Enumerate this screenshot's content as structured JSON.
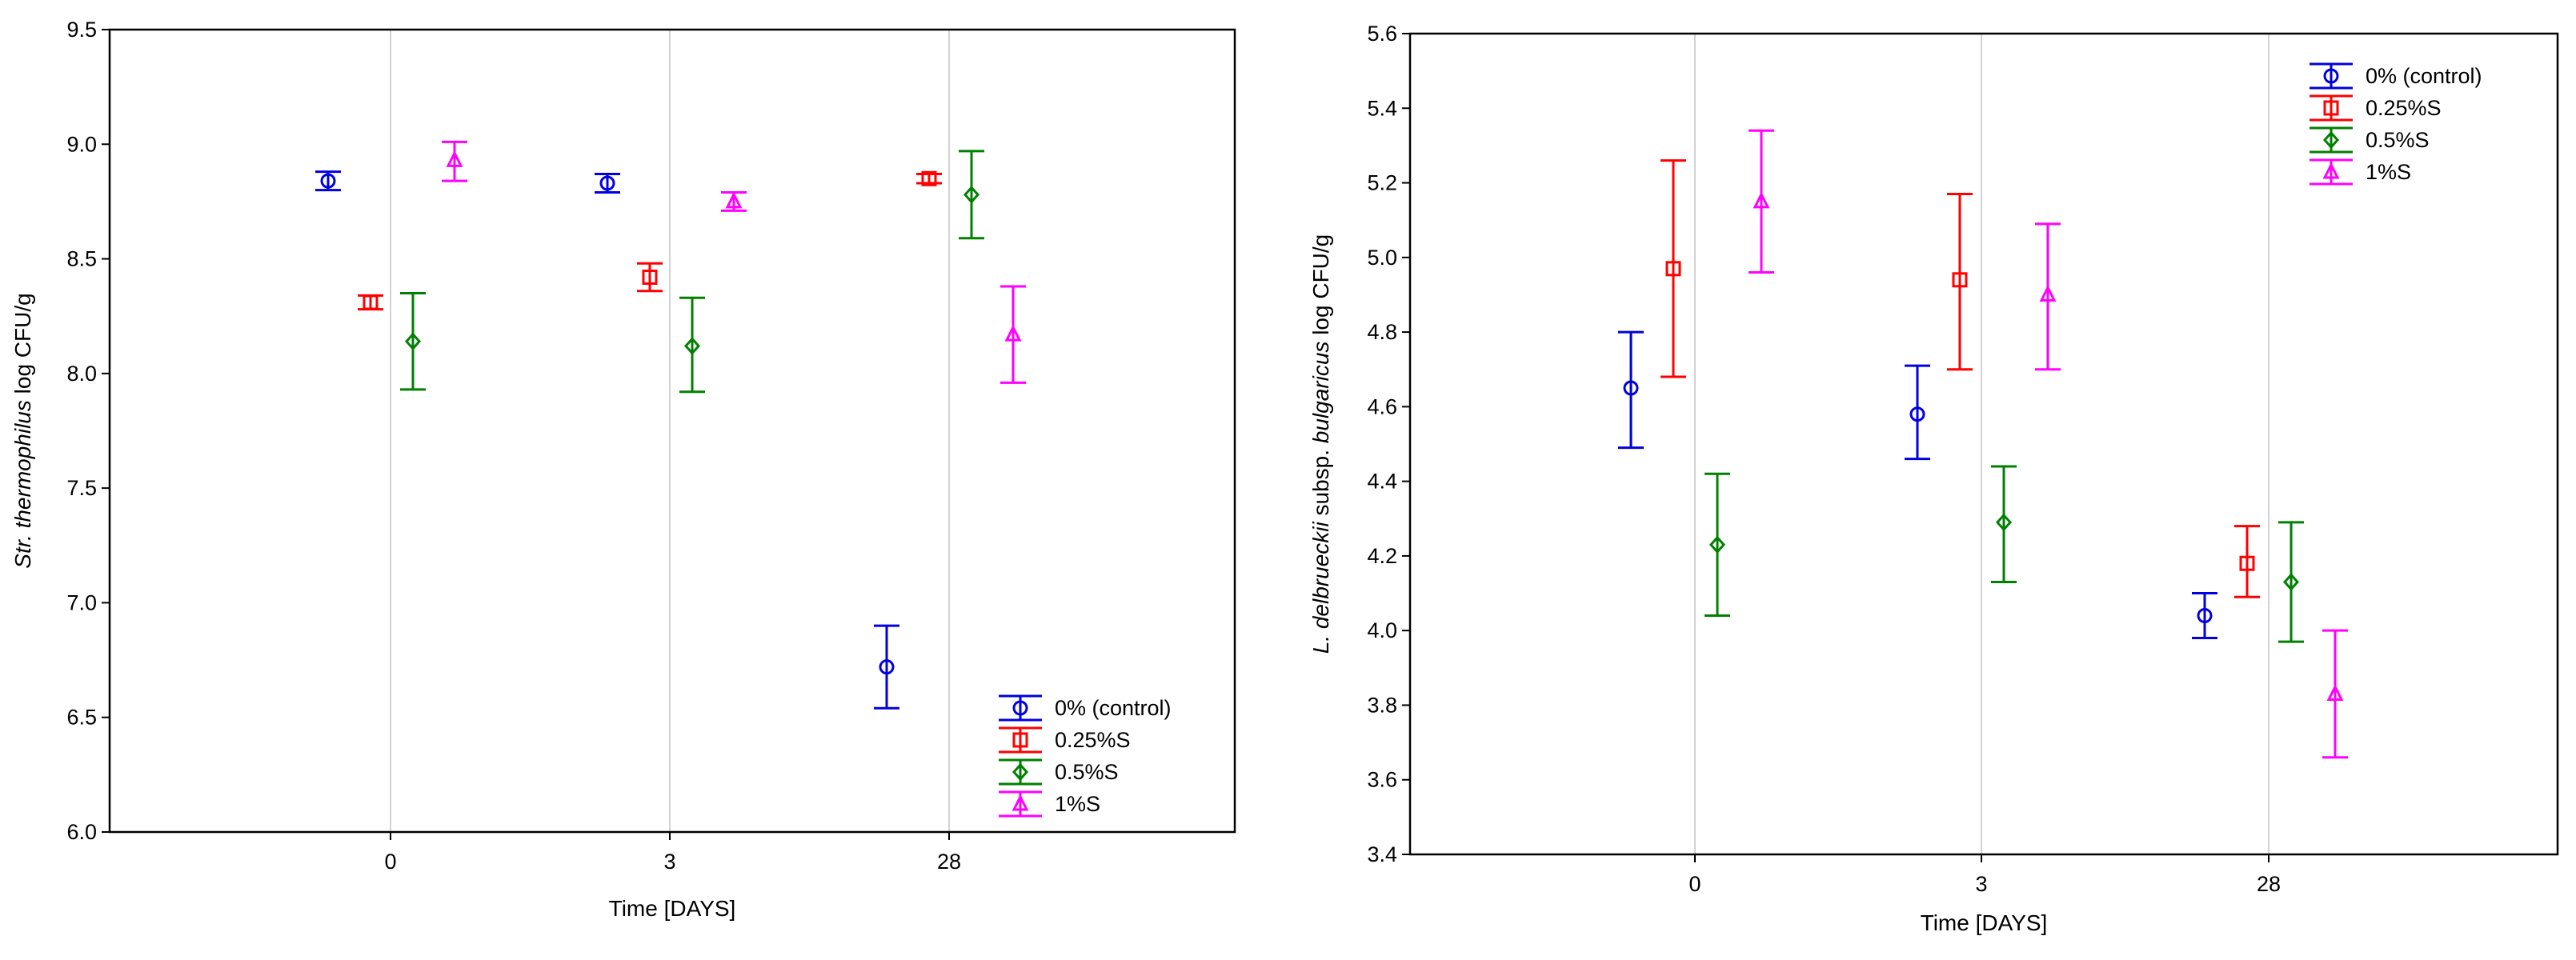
{
  "chart_data": [
    {
      "type": "scatter",
      "subtype": "means-with-error-bars",
      "title": "",
      "xlabel": "Time [DAYS]",
      "ylabel_parts": [
        {
          "text": "Str. thermophilus",
          "italic": true
        },
        {
          "text": " log CFU/g",
          "italic": false
        }
      ],
      "categories": [
        "0",
        "3",
        "28"
      ],
      "ylim": [
        6.0,
        9.5
      ],
      "yticks": [
        "6.0",
        "6.5",
        "7.0",
        "7.5",
        "8.0",
        "8.5",
        "9.0",
        "9.5"
      ],
      "grid": "vertical",
      "legend_position": "bottom-right",
      "series": [
        {
          "name": "0% (control)",
          "color": "#0000e0",
          "marker": "circle",
          "values": [
            8.84,
            8.83,
            6.72
          ],
          "upper": [
            8.88,
            8.87,
            6.9
          ],
          "lower": [
            8.8,
            8.79,
            6.54
          ]
        },
        {
          "name": "0.25%S",
          "color": "#ff0000",
          "marker": "square",
          "values": [
            8.31,
            8.42,
            8.85
          ],
          "upper": [
            8.34,
            8.48,
            8.87
          ],
          "lower": [
            8.28,
            8.36,
            8.83
          ]
        },
        {
          "name": " 0.5%S",
          "color": "#008000",
          "marker": "diamond",
          "values": [
            8.14,
            8.12,
            8.78
          ],
          "upper": [
            8.35,
            8.33,
            8.97
          ],
          "lower": [
            7.93,
            7.92,
            8.59
          ]
        },
        {
          "name": "1%S",
          "color": "#ff00ff",
          "marker": "triangle",
          "values": [
            8.93,
            8.75,
            8.17
          ],
          "upper": [
            9.01,
            8.79,
            8.38
          ],
          "lower": [
            8.84,
            8.71,
            7.96
          ]
        }
      ]
    },
    {
      "type": "scatter",
      "subtype": "means-with-error-bars",
      "title": "",
      "xlabel": "Time [DAYS]",
      "ylabel_parts": [
        {
          "text": "L. delbrueckii",
          "italic": true
        },
        {
          "text": " subsp. ",
          "italic": false
        },
        {
          "text": "bulgaricus",
          "italic": true
        },
        {
          "text": " log CFU/g",
          "italic": false
        }
      ],
      "categories": [
        "0",
        "3",
        "28"
      ],
      "ylim": [
        3.4,
        5.6
      ],
      "yticks": [
        "3.4",
        "3.6",
        "3.8",
        "4.0",
        "4.2",
        "4.4",
        "4.6",
        "4.8",
        "5.0",
        "5.2",
        "5.4",
        "5.6"
      ],
      "grid": "vertical",
      "legend_position": "top-right",
      "series": [
        {
          "name": "0% (control)",
          "color": "#0000e0",
          "marker": "circle",
          "values": [
            4.65,
            4.58,
            4.04
          ],
          "upper": [
            4.8,
            4.71,
            4.1
          ],
          "lower": [
            4.49,
            4.46,
            3.98
          ]
        },
        {
          "name": "0.25%S",
          "color": "#ff0000",
          "marker": "square",
          "values": [
            4.97,
            4.94,
            4.18
          ],
          "upper": [
            5.26,
            5.17,
            4.28
          ],
          "lower": [
            4.68,
            4.7,
            4.09
          ]
        },
        {
          "name": " 0.5%S",
          "color": "#008000",
          "marker": "diamond",
          "values": [
            4.23,
            4.29,
            4.13
          ],
          "upper": [
            4.42,
            4.44,
            4.29
          ],
          "lower": [
            4.04,
            4.13,
            3.97
          ]
        },
        {
          "name": "1%S",
          "color": "#ff00ff",
          "marker": "triangle",
          "values": [
            5.15,
            4.9,
            3.83
          ],
          "upper": [
            5.34,
            5.09,
            4.0
          ],
          "lower": [
            4.96,
            4.7,
            3.66
          ]
        }
      ]
    }
  ]
}
